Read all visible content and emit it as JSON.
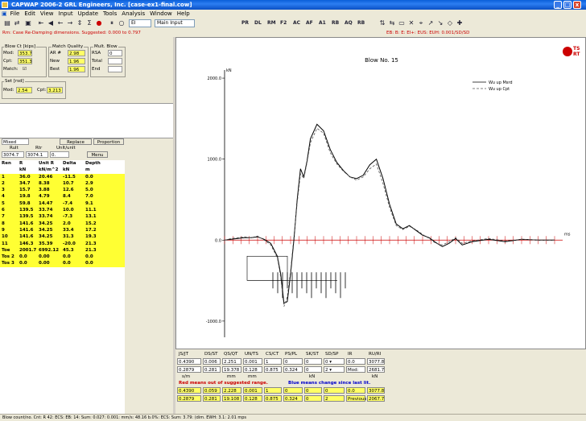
{
  "window": {
    "title": "CAPWAP 2006-2 GRL Engineers, Inc.        [case-ex1-final.cow]",
    "min": "_",
    "max": "□",
    "close": "x"
  },
  "menu": [
    "File",
    "Edit",
    "View",
    "Input",
    "Update",
    "Tools",
    "Analysis",
    "Window",
    "Help"
  ],
  "toolbar": {
    "combo1": "EI",
    "combo2": "Main Input",
    "labels": [
      "PR",
      "DL",
      "RM",
      "F2",
      "AC",
      "AF",
      "A1",
      "RB",
      "AQ",
      "RB"
    ]
  },
  "status_line": "Rm: Case Re-Damping dimensions. Suggested: 0.000 to 0.797",
  "status_right": "EB: B: E: EI+: EUS: EUH: 0.001/SD/SD",
  "blow_ct": {
    "title": "Blow Ct [kips]",
    "rows": [
      {
        "label": "Mod:",
        "value": "353.7"
      },
      {
        "label": "Cpt:",
        "value": "351.3"
      },
      {
        "label": "Match:",
        "value": "☑"
      }
    ]
  },
  "match_quality": {
    "title": "Match Quality",
    "rows": [
      {
        "label": "AR #",
        "value": "2.98"
      },
      {
        "label": "New",
        "value": "1.96"
      },
      {
        "label": "Best",
        "value": "1.96"
      }
    ]
  },
  "mult_blow": {
    "title": "Mult. Blow",
    "rows": [
      {
        "label": "RSA",
        "value": "0"
      },
      {
        "label": "Total",
        "value": ""
      },
      {
        "label": "End",
        "value": ""
      }
    ]
  },
  "set_rsd": {
    "title": "Set [rsd]",
    "label1": "Mod:",
    "value1": "2.54",
    "label2": "Cpt:",
    "value2": "3.213"
  },
  "mixed": {
    "combo": "Mixed",
    "replace": "Replace",
    "proportion": "Proportion",
    "h1": "Rult",
    "h2": "Rtr",
    "h3": "Unlt/unlt",
    "v1": "3074.7",
    "v2": "3074.1",
    "v3": "0.",
    "menu": "Menu"
  },
  "table": {
    "headers": [
      "Ren",
      "R",
      "Unit R",
      "Delta",
      "Depth"
    ],
    "units": [
      "",
      "kN",
      "kN/m^2",
      "kN",
      "m"
    ],
    "rows": [
      [
        "1",
        "36.0",
        "20.46",
        "-11.5",
        "0.0"
      ],
      [
        "2",
        "34.7",
        "8.38",
        "10.7",
        "2.9"
      ],
      [
        "3",
        "15.7",
        "3.88",
        "12.6",
        "5.0"
      ],
      [
        "4",
        "19.8",
        "4.79",
        "8.4",
        "7.0"
      ],
      [
        "5",
        "59.8",
        "14.47",
        "-7.4",
        "9.1"
      ],
      [
        "6",
        "139.5",
        "33.74",
        "10.0",
        "11.1"
      ],
      [
        "7",
        "139.5",
        "33.74",
        "-7.3",
        "13.1"
      ],
      [
        "8",
        "141.6",
        "34.25",
        "2.0",
        "15.2"
      ],
      [
        "9",
        "141.6",
        "34.25",
        "33.4",
        "17.2"
      ],
      [
        "10",
        "141.6",
        "34.25",
        "31.3",
        "19.3"
      ],
      [
        "11",
        "146.3",
        "35.39",
        "-20.0",
        "21.3"
      ],
      [
        "Toe",
        "2001.7",
        "6992.12",
        "45.3",
        "21.3"
      ],
      [
        "Tos 2",
        "0.0",
        "0.00",
        "0.0",
        "0.0"
      ],
      [
        "Tos 3",
        "0.0",
        "0.00",
        "0.0",
        "0.0"
      ]
    ]
  },
  "chart_data": {
    "type": "line",
    "title": "Blow No. 15",
    "ylabel": "kN",
    "xlabel": "ms",
    "y_ticks": [
      "2000.0",
      "1000.0",
      "0.0",
      "-1000.0"
    ],
    "ylim": [
      -1200,
      2100
    ],
    "xlim": [
      0,
      1
    ],
    "series": [
      {
        "name": "Wu up Msrd",
        "style": "solid"
      },
      {
        "name": "Wu up Cpt",
        "style": "dashed"
      }
    ],
    "x": [
      0,
      0.02,
      0.04,
      0.06,
      0.08,
      0.1,
      0.12,
      0.14,
      0.16,
      0.17,
      0.18,
      0.19,
      0.2,
      0.21,
      0.22,
      0.23,
      0.24,
      0.25,
      0.26,
      0.28,
      0.3,
      0.32,
      0.34,
      0.36,
      0.38,
      0.4,
      0.42,
      0.44,
      0.46,
      0.48,
      0.5,
      0.52,
      0.54,
      0.56,
      0.58,
      0.6,
      0.62,
      0.64,
      0.66,
      0.68,
      0.7,
      0.72,
      0.75,
      0.8,
      0.85,
      0.9,
      0.95,
      1.0
    ],
    "values": [
      [
        0,
        10,
        20,
        30,
        30,
        40,
        10,
        -40,
        -200,
        -420,
        -780,
        -760,
        -420,
        0,
        500,
        880,
        780,
        980,
        1250,
        1430,
        1350,
        1120,
        960,
        860,
        780,
        760,
        800,
        930,
        1000,
        760,
        440,
        200,
        140,
        180,
        120,
        60,
        30,
        -30,
        -80,
        -40,
        20,
        -60,
        -20,
        10,
        -20,
        10,
        0,
        0
      ],
      [
        0,
        20,
        30,
        40,
        30,
        50,
        0,
        -60,
        -220,
        -460,
        -820,
        -700,
        -380,
        40,
        460,
        820,
        760,
        960,
        1200,
        1380,
        1320,
        1080,
        940,
        850,
        780,
        740,
        780,
        880,
        940,
        700,
        400,
        180,
        130,
        170,
        130,
        70,
        20,
        -40,
        -60,
        -20,
        30,
        -40,
        -10,
        20,
        -10,
        10,
        0,
        0
      ]
    ]
  },
  "bottom": {
    "headers": [
      "JS/JT",
      "DS/ST",
      "QS/QT",
      "UN/TS",
      "CS/CT",
      "PS/PL",
      "SK/ST",
      "SD/SP",
      "IR",
      "RU/RI"
    ],
    "row1": [
      "0.4390",
      "0.006",
      "2.251",
      "0.001",
      "1",
      "0",
      "0",
      "0 ▾",
      "0.0",
      "3077.8"
    ],
    "row2": [
      "0.2879",
      "0.281",
      "19.378",
      "0.128",
      "0.875",
      "0.324",
      "0",
      "2 ▾",
      "Mod:",
      "2681.7"
    ],
    "units": [
      "s/m",
      "",
      "mm",
      "mm",
      "",
      "",
      "kN",
      "",
      "",
      "kN"
    ],
    "note1": "Red means out of suggested range.",
    "note2": "Blue means change since last lit.",
    "row3": [
      "0.4390",
      "0.059",
      "2.228",
      "0.001",
      "1",
      "0",
      "0",
      "0",
      "0.0",
      "3077.8"
    ],
    "row4": [
      "0.2879",
      "0.281",
      "19.108",
      "0.128",
      "0.875",
      "0.324",
      "0",
      "2",
      "Previous",
      "2067.7"
    ]
  },
  "statusbar": "Blow count/no. Cnt: R 42: ECS: EB: 14: Sum: 0.027: 0.001:   mm/s:   48.16   b.0%:   ECS: Sum: 3.79: (dim. EWH: 3.1: 2.01 mps",
  "logo": "GRL"
}
